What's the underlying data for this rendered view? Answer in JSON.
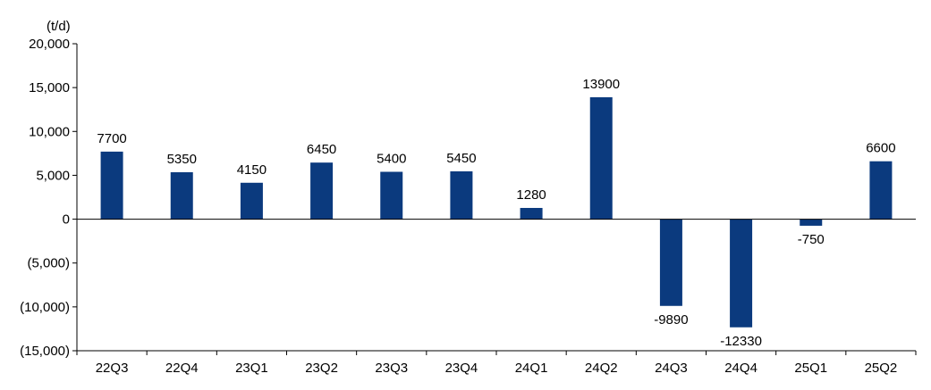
{
  "chart_data": {
    "type": "bar",
    "unit_label": "(t/d)",
    "categories": [
      "22Q3",
      "22Q4",
      "23Q1",
      "23Q2",
      "23Q3",
      "23Q4",
      "24Q1",
      "24Q2",
      "24Q3",
      "24Q4",
      "25Q1",
      "25Q2"
    ],
    "values": [
      7700,
      5350,
      4150,
      6450,
      5400,
      5450,
      1280,
      13900,
      -9890,
      -12330,
      -750,
      6600
    ],
    "data_labels": [
      "7700",
      "5350",
      "4150",
      "6450",
      "5400",
      "5450",
      "1280",
      "13900",
      "-9890",
      "-12330",
      "-750",
      "6600"
    ],
    "ylim": [
      -15000,
      20000
    ],
    "yticks": [
      20000,
      15000,
      10000,
      5000,
      0,
      -5000,
      -10000,
      -15000
    ],
    "ytick_labels": [
      "20,000",
      "15,000",
      "10,000",
      "5,000",
      "0",
      "(5,000)",
      "(10,000)",
      "(15,000)"
    ],
    "bar_color": "#0b3a7e",
    "grid": false,
    "legend": "none"
  }
}
